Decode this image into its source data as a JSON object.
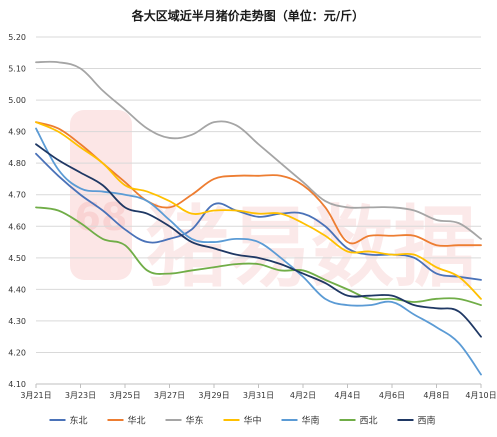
{
  "chart_data": {
    "type": "line",
    "title": "各大区域近半月猪价走势图（单位：元/斤）",
    "watermark_text": "猪易数据",
    "watermark_logo_text": "68",
    "grid": true,
    "legend_position": "bottom",
    "ylim": [
      4.1,
      5.2
    ],
    "yticks": [
      "4.10",
      "4.20",
      "4.30",
      "4.40",
      "4.50",
      "4.60",
      "4.70",
      "4.80",
      "4.90",
      "5.00",
      "5.10",
      "5.20"
    ],
    "x": [
      "3月21日",
      "3月22日",
      "3月23日",
      "3月24日",
      "3月25日",
      "3月26日",
      "3月27日",
      "3月28日",
      "3月29日",
      "3月30日",
      "3月31日",
      "4月1日",
      "4月2日",
      "4月3日",
      "4月4日",
      "4月5日",
      "4月6日",
      "4月7日",
      "4月8日",
      "4月9日",
      "4月10日"
    ],
    "xtick_labels": [
      "3月21日",
      "3月23日",
      "3月25日",
      "3月27日",
      "3月29日",
      "3月31日",
      "4月2日",
      "4月4日",
      "4月6日",
      "4月8日",
      "4月10日"
    ],
    "series": [
      {
        "name": "东北",
        "color": "#4a72b8",
        "values": [
          4.83,
          4.76,
          4.7,
          4.65,
          4.59,
          4.55,
          4.56,
          4.59,
          4.67,
          4.65,
          4.63,
          4.64,
          4.64,
          4.6,
          4.53,
          4.51,
          4.51,
          4.5,
          4.45,
          4.44,
          4.43
        ]
      },
      {
        "name": "华北",
        "color": "#ed7d31",
        "values": [
          4.93,
          4.91,
          4.86,
          4.8,
          4.74,
          4.68,
          4.66,
          4.7,
          4.75,
          4.76,
          4.76,
          4.76,
          4.73,
          4.66,
          4.55,
          4.57,
          4.57,
          4.57,
          4.54,
          4.54,
          4.54
        ]
      },
      {
        "name": "华东",
        "color": "#a5a5a5",
        "values": [
          5.12,
          5.12,
          5.1,
          5.03,
          4.97,
          4.91,
          4.88,
          4.89,
          4.93,
          4.92,
          4.86,
          4.8,
          4.74,
          4.68,
          4.66,
          4.66,
          4.66,
          4.65,
          4.62,
          4.61,
          4.56
        ]
      },
      {
        "name": "华中",
        "color": "#ffc000",
        "values": [
          4.93,
          4.9,
          4.85,
          4.8,
          4.73,
          4.71,
          4.68,
          4.64,
          4.65,
          4.65,
          4.64,
          4.64,
          4.61,
          4.57,
          4.52,
          4.52,
          4.51,
          4.51,
          4.47,
          4.44,
          4.37
        ]
      },
      {
        "name": "华南",
        "color": "#5b9bd5",
        "values": [
          4.91,
          4.78,
          4.72,
          4.71,
          4.7,
          4.68,
          4.62,
          4.56,
          4.55,
          4.56,
          4.55,
          4.5,
          4.44,
          4.37,
          4.35,
          4.35,
          4.36,
          4.32,
          4.28,
          4.23,
          4.13
        ]
      },
      {
        "name": "西北",
        "color": "#70ad47",
        "values": [
          4.66,
          4.65,
          4.61,
          4.56,
          4.54,
          4.46,
          4.45,
          4.46,
          4.47,
          4.48,
          4.48,
          4.46,
          4.46,
          4.43,
          4.4,
          4.37,
          4.37,
          4.36,
          4.37,
          4.37,
          4.35
        ]
      },
      {
        "name": "西南",
        "color": "#1f3864",
        "values": [
          4.86,
          4.81,
          4.77,
          4.73,
          4.66,
          4.64,
          4.6,
          4.55,
          4.53,
          4.51,
          4.5,
          4.48,
          4.45,
          4.42,
          4.38,
          4.38,
          4.38,
          4.35,
          4.34,
          4.33,
          4.25
        ]
      }
    ]
  }
}
